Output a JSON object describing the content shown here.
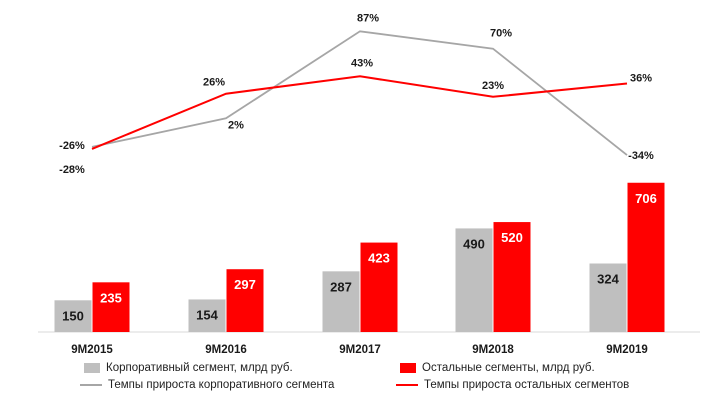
{
  "chart_data": {
    "type": "bar",
    "categories": [
      "9M2015",
      "9M2016",
      "9M2017",
      "9M2018",
      "9M2019"
    ],
    "bar_series": [
      {
        "name": "Корпоративный сегмент, млрд руб.",
        "values": [
          150,
          154,
          287,
          490,
          324
        ],
        "color": "#bfbfbf",
        "label_color": "#1a1a1a"
      },
      {
        "name": "Остальные сегменты, млрд руб.",
        "values": [
          235,
          297,
          423,
          520,
          706
        ],
        "color": "#ff0000",
        "label_color": "#ffffff"
      }
    ],
    "line_series": [
      {
        "name": "Темпы прироста корпоративного сегмента",
        "values": [
          -26,
          2,
          87,
          70,
          -34
        ],
        "labels": [
          "-26%",
          "2%",
          "87%",
          "70%",
          "-34%"
        ],
        "color": "#a6a6a6"
      },
      {
        "name": "Темпы прироста остальных сегментов",
        "values": [
          -28,
          26,
          43,
          23,
          36
        ],
        "labels": [
          "-28%",
          "26%",
          "43%",
          "23%",
          "36%"
        ],
        "color": "#ff0000"
      }
    ],
    "bar_ylim": [
      0,
      900
    ],
    "line_ylim": [
      -40,
      100
    ],
    "legend_position": "bottom"
  }
}
